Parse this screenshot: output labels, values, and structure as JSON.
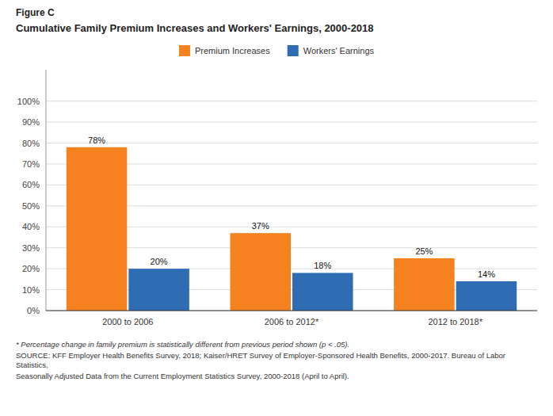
{
  "chart_data": {
    "type": "bar",
    "figure_label": "Figure C",
    "title": "Cumulative Family Premium Increases and Workers' Earnings, 2000-2018",
    "categories": [
      "2000 to 2006",
      "2006 to 2012*",
      "2012 to 2018*"
    ],
    "series": [
      {
        "name": "Premium Increases",
        "color": "#F5821F",
        "values": [
          78,
          37,
          25
        ],
        "value_labels": [
          "78%",
          "37%",
          "25%"
        ]
      },
      {
        "name": "Workers' Earnings",
        "color": "#2E6DB4",
        "values": [
          20,
          18,
          14
        ],
        "value_labels": [
          "20%",
          "18%",
          "14%"
        ]
      }
    ],
    "ylim": [
      0,
      115
    ],
    "yticks": [
      {
        "value": 0,
        "label": "0%"
      },
      {
        "value": 10,
        "label": "10%"
      },
      {
        "value": 20,
        "label": "20%"
      },
      {
        "value": 30,
        "label": "30%"
      },
      {
        "value": 40,
        "label": "40%"
      },
      {
        "value": 50,
        "label": "50%"
      },
      {
        "value": 60,
        "label": "60%"
      },
      {
        "value": 70,
        "label": "70%"
      },
      {
        "value": 80,
        "label": "80%"
      },
      {
        "value": 90,
        "label": "90%"
      },
      {
        "value": 100,
        "label": "100%"
      }
    ],
    "grid": true,
    "legend": "top",
    "data_labels": true,
    "footnotes": [
      "* Percentage change in family premium is statistically different from previous period shown (p < .05).",
      "SOURCE: KFF Employer Health Benefits Survey, 2018; Kaiser/HRET Survey of Employer-Sponsored Health Benefits, 2000-2017. Bureau of Labor Statistics,",
      "Seasonally Adjusted Data from the Current Employment Statistics Survey, 2000-2018 (April to April)."
    ]
  }
}
